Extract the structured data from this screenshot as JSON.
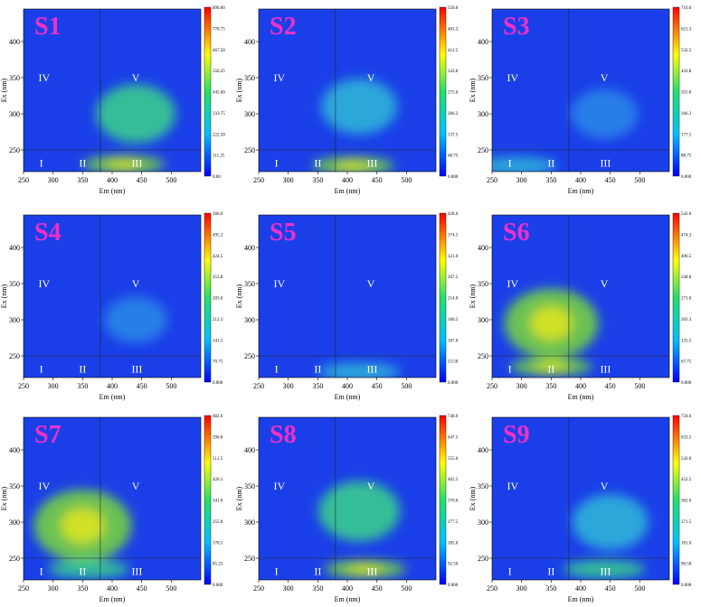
{
  "chart_data": [
    {
      "type": "heatmap",
      "title": "S1",
      "xlabel": "Em (nm)",
      "ylabel": "Ex (nm)",
      "xlim": [
        250,
        550
      ],
      "ylim": [
        220,
        445
      ],
      "xticks": [
        250,
        300,
        350,
        400,
        450,
        500
      ],
      "yticks": [
        250,
        300,
        350,
        400
      ],
      "colorbar": [
        "890.00",
        "778.75",
        "667.50",
        "556.25",
        "445.00",
        "333.75",
        "222.50",
        "111.25",
        "0.00"
      ],
      "regions": [
        "I",
        "II",
        "III",
        "IV",
        "V"
      ],
      "boundaries": {
        "em": 380,
        "ex": 250
      },
      "peaks": [
        {
          "em": 440,
          "ex": 300,
          "rel": 0.35
        },
        {
          "em": 420,
          "ex": 230,
          "rel": 0.55
        }
      ]
    },
    {
      "type": "heatmap",
      "title": "S2",
      "xlabel": "Em (nm)",
      "ylabel": "Ex (nm)",
      "xlim": [
        250,
        550
      ],
      "ylim": [
        220,
        445
      ],
      "xticks": [
        250,
        300,
        350,
        400,
        450,
        500
      ],
      "yticks": [
        250,
        300,
        350,
        400
      ],
      "colorbar": [
        "550.0",
        "481.3",
        "412.5",
        "343.8",
        "275.0",
        "206.3",
        "137.5",
        "68.75",
        "0.000"
      ],
      "regions": [
        "I",
        "II",
        "III",
        "IV",
        "V"
      ],
      "boundaries": {
        "em": 380,
        "ex": 250
      },
      "peaks": [
        {
          "em": 420,
          "ex": 310,
          "rel": 0.3
        },
        {
          "em": 410,
          "ex": 228,
          "rel": 0.6
        }
      ]
    },
    {
      "type": "heatmap",
      "title": "S3",
      "xlabel": "Em (nm)",
      "ylabel": "Ex (nm)",
      "xlim": [
        250,
        550
      ],
      "ylim": [
        220,
        445
      ],
      "xticks": [
        250,
        300,
        350,
        400,
        450,
        500
      ],
      "yticks": [
        250,
        300,
        350,
        400
      ],
      "colorbar": [
        "710.0",
        "621.3",
        "532.5",
        "443.8",
        "355.0",
        "266.3",
        "177.5",
        "88.75",
        "0.000"
      ],
      "regions": [
        "I",
        "II",
        "III",
        "IV",
        "V"
      ],
      "boundaries": {
        "em": 380,
        "ex": 250
      },
      "peaks": [
        {
          "em": 440,
          "ex": 300,
          "rel": 0.18
        },
        {
          "em": 290,
          "ex": 228,
          "rel": 0.3
        }
      ]
    },
    {
      "type": "heatmap",
      "title": "S4",
      "xlabel": "Em (nm)",
      "ylabel": "Ex (nm)",
      "xlim": [
        250,
        550
      ],
      "ylim": [
        220,
        445
      ],
      "xticks": [
        250,
        300,
        350,
        400,
        450,
        500
      ],
      "yticks": [
        250,
        300,
        350,
        400
      ],
      "colorbar": [
        "566.0",
        "495.3",
        "424.5",
        "353.8",
        "283.0",
        "212.3",
        "141.5",
        "70.75",
        "0.000"
      ],
      "regions": [
        "I",
        "II",
        "III",
        "IV",
        "V"
      ],
      "boundaries": {
        "em": 380,
        "ex": 250
      },
      "peaks": [
        {
          "em": 440,
          "ex": 300,
          "rel": 0.12
        }
      ]
    },
    {
      "type": "heatmap",
      "title": "S5",
      "xlabel": "Em (nm)",
      "ylabel": "Ex (nm)",
      "xlim": [
        250,
        550
      ],
      "ylim": [
        220,
        445
      ],
      "xticks": [
        250,
        300,
        350,
        400,
        450,
        500
      ],
      "yticks": [
        250,
        300,
        350,
        400
      ],
      "colorbar": [
        "428.0",
        "374.5",
        "321.0",
        "267.5",
        "214.0",
        "160.5",
        "107.0",
        "53.50",
        "0.000"
      ],
      "regions": [
        "I",
        "II",
        "III",
        "IV",
        "V"
      ],
      "boundaries": {
        "em": 380,
        "ex": 250
      },
      "peaks": [
        {
          "em": 420,
          "ex": 228,
          "rel": 0.3
        }
      ]
    },
    {
      "type": "heatmap",
      "title": "S6",
      "xlabel": "Em (nm)",
      "ylabel": "Ex (nm)",
      "xlim": [
        250,
        550
      ],
      "ylim": [
        220,
        445
      ],
      "xticks": [
        250,
        300,
        350,
        400,
        450,
        500
      ],
      "yticks": [
        250,
        300,
        350,
        400
      ],
      "colorbar": [
        "542.0",
        "474.3",
        "406.5",
        "338.8",
        "271.0",
        "203.3",
        "135.5",
        "67.75",
        "0.000"
      ],
      "regions": [
        "I",
        "II",
        "III",
        "IV",
        "V"
      ],
      "boundaries": {
        "em": 380,
        "ex": 250
      },
      "peaks": [
        {
          "em": 350,
          "ex": 295,
          "rel": 0.55
        },
        {
          "em": 350,
          "ex": 235,
          "rel": 0.6
        }
      ]
    },
    {
      "type": "heatmap",
      "title": "S7",
      "xlabel": "Em (nm)",
      "ylabel": "Ex (nm)",
      "xlim": [
        250,
        550
      ],
      "ylim": [
        220,
        445
      ],
      "xticks": [
        250,
        300,
        350,
        400,
        450,
        500
      ],
      "yticks": [
        250,
        300,
        350,
        400
      ],
      "colorbar": [
        "682.0",
        "596.8",
        "511.5",
        "426.3",
        "341.0",
        "255.8",
        "170.5",
        "85.25",
        "0.000"
      ],
      "regions": [
        "I",
        "II",
        "III",
        "IV",
        "V"
      ],
      "boundaries": {
        "em": 380,
        "ex": 250
      },
      "peaks": [
        {
          "em": 350,
          "ex": 295,
          "rel": 0.6
        },
        {
          "em": 360,
          "ex": 235,
          "rel": 0.45
        }
      ]
    },
    {
      "type": "heatmap",
      "title": "S8",
      "xlabel": "Em (nm)",
      "ylabel": "Ex (nm)",
      "xlim": [
        250,
        550
      ],
      "ylim": [
        220,
        445
      ],
      "xticks": [
        250,
        300,
        350,
        400,
        450,
        500
      ],
      "yticks": [
        250,
        300,
        350,
        400
      ],
      "colorbar": [
        "740.0",
        "647.5",
        "555.0",
        "462.5",
        "370.0",
        "277.5",
        "185.0",
        "92.50",
        "0.000"
      ],
      "regions": [
        "I",
        "II",
        "III",
        "IV",
        "V"
      ],
      "boundaries": {
        "em": 380,
        "ex": 250
      },
      "peaks": [
        {
          "em": 420,
          "ex": 315,
          "rel": 0.38
        },
        {
          "em": 430,
          "ex": 235,
          "rel": 0.55
        }
      ]
    },
    {
      "type": "heatmap",
      "title": "S9",
      "xlabel": "Em (nm)",
      "ylabel": "Ex (nm)",
      "xlim": [
        250,
        550
      ],
      "ylim": [
        220,
        445
      ],
      "xticks": [
        250,
        300,
        350,
        400,
        450,
        500
      ],
      "yticks": [
        250,
        300,
        350,
        400
      ],
      "colorbar": [
        "724.0",
        "633.5",
        "543.0",
        "452.5",
        "362.0",
        "271.5",
        "181.0",
        "90.50",
        "0.000"
      ],
      "regions": [
        "I",
        "II",
        "III",
        "IV",
        "V"
      ],
      "boundaries": {
        "em": 380,
        "ex": 250
      },
      "peaks": [
        {
          "em": 450,
          "ex": 300,
          "rel": 0.3
        },
        {
          "em": 440,
          "ex": 235,
          "rel": 0.38
        }
      ]
    }
  ]
}
